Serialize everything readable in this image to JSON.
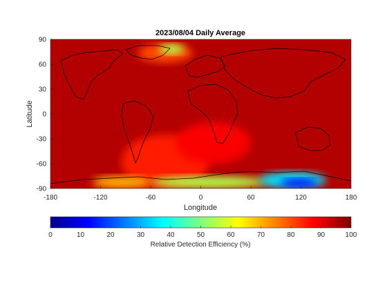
{
  "chart_data": {
    "type": "heatmap",
    "title": "2023/08/04 Daily Average",
    "xlabel": "Longitude",
    "ylabel": "Latitude",
    "xlim": [
      -180,
      180
    ],
    "ylim": [
      -90,
      90
    ],
    "xticks": [
      -180,
      -120,
      -60,
      0,
      60,
      120,
      180
    ],
    "yticks": [
      90,
      60,
      30,
      0,
      -30,
      -60,
      -90
    ],
    "colorbar": {
      "label": "Relative Detection Efficiency (%)",
      "range": [
        0,
        100
      ],
      "ticks": [
        0,
        10,
        20,
        30,
        40,
        50,
        60,
        70,
        80,
        90,
        100
      ],
      "colormap": "jet"
    },
    "regions": [
      {
        "lon": [
          -180,
          180
        ],
        "lat": [
          -90,
          90
        ],
        "value": 95
      },
      {
        "lon": [
          -95,
          10
        ],
        "lat": [
          -90,
          -25
        ],
        "value": 85
      },
      {
        "lon": [
          -30,
          60
        ],
        "lat": [
          -60,
          -10
        ],
        "value": 88
      },
      {
        "lon": [
          -130,
          -60
        ],
        "lat": [
          -90,
          -75
        ],
        "value": 70
      },
      {
        "lon": [
          -60,
          80
        ],
        "lat": [
          -90,
          -75
        ],
        "value": 55
      },
      {
        "lon": [
          70,
          150
        ],
        "lat": [
          -90,
          -70
        ],
        "value": 35
      },
      {
        "lon": [
          95,
          140
        ],
        "lat": [
          -88,
          -78
        ],
        "value": 12
      },
      {
        "lon": [
          -75,
          -10
        ],
        "lat": [
          62,
          85
        ],
        "value": 80
      },
      {
        "lon": [
          -50,
          -20
        ],
        "lat": [
          72,
          84
        ],
        "value": 55
      }
    ]
  },
  "colors": {
    "background": "#ffffff",
    "axis": "#262626",
    "coastline": "#000000"
  }
}
